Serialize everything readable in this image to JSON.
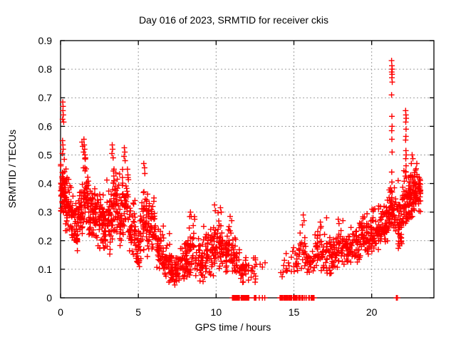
{
  "chart_data": {
    "type": "scatter",
    "title": "Day 016 of 2023, SRMTID for receiver ckis",
    "xlabel": "GPS time / hours",
    "ylabel": "SRMTID / TECUs",
    "xlim": [
      0,
      24
    ],
    "ylim": [
      0,
      0.9
    ],
    "x_ticks": [
      0,
      5,
      10,
      15,
      20
    ],
    "x_tick_labels": [
      "0",
      "5",
      "10",
      "15",
      "20"
    ],
    "y_ticks": [
      0,
      0.1,
      0.2,
      0.3,
      0.4,
      0.5,
      0.6,
      0.7,
      0.8,
      0.9
    ],
    "y_tick_labels": [
      "0",
      "0.1",
      "0.2",
      "0.3",
      "0.4",
      "0.5",
      "0.6",
      "0.7",
      "0.8",
      "0.9"
    ],
    "grid": true,
    "legend": "none",
    "marker": "plus",
    "marker_color": "#ff0000",
    "grid_color": "#9e9e9e",
    "border_color": "#000000",
    "max_point": {
      "x": 21.3,
      "y": 0.83
    },
    "data_gap_hours": [
      13.2,
      14.1
    ],
    "bins_format": [
      "x_start",
      "x_end",
      "y_min",
      "y_max",
      "count"
    ],
    "density_bins": [
      [
        0.0,
        0.3,
        0.27,
        0.5,
        60
      ],
      [
        0.3,
        0.7,
        0.22,
        0.46,
        50
      ],
      [
        0.7,
        1.1,
        0.16,
        0.42,
        48
      ],
      [
        1.1,
        1.45,
        0.22,
        0.44,
        40
      ],
      [
        1.45,
        1.8,
        0.24,
        0.52,
        45
      ],
      [
        1.8,
        2.15,
        0.2,
        0.4,
        42
      ],
      [
        2.15,
        2.55,
        0.16,
        0.44,
        45
      ],
      [
        2.55,
        2.95,
        0.15,
        0.4,
        42
      ],
      [
        2.95,
        3.3,
        0.14,
        0.42,
        40
      ],
      [
        3.3,
        3.6,
        0.2,
        0.5,
        38
      ],
      [
        3.6,
        3.95,
        0.18,
        0.45,
        36
      ],
      [
        3.95,
        4.4,
        0.2,
        0.5,
        42
      ],
      [
        4.4,
        4.8,
        0.15,
        0.36,
        36
      ],
      [
        4.8,
        5.2,
        0.1,
        0.3,
        36
      ],
      [
        5.2,
        5.65,
        0.14,
        0.44,
        42
      ],
      [
        5.65,
        6.15,
        0.16,
        0.36,
        46
      ],
      [
        6.15,
        6.65,
        0.08,
        0.27,
        44
      ],
      [
        6.65,
        7.15,
        0.05,
        0.2,
        44
      ],
      [
        7.15,
        7.65,
        0.035,
        0.16,
        44
      ],
      [
        7.65,
        8.15,
        0.05,
        0.2,
        44
      ],
      [
        8.15,
        8.75,
        0.06,
        0.29,
        46
      ],
      [
        8.75,
        9.35,
        0.05,
        0.23,
        44
      ],
      [
        9.35,
        9.85,
        0.07,
        0.28,
        42
      ],
      [
        9.85,
        10.35,
        0.09,
        0.31,
        44
      ],
      [
        10.35,
        10.85,
        0.09,
        0.27,
        42
      ],
      [
        10.85,
        11.35,
        0.07,
        0.25,
        40
      ],
      [
        11.35,
        11.95,
        0.05,
        0.18,
        30
      ],
      [
        11.95,
        12.55,
        0.05,
        0.17,
        18
      ],
      [
        12.55,
        13.2,
        0.08,
        0.15,
        4
      ],
      [
        14.1,
        14.8,
        0.06,
        0.14,
        10
      ],
      [
        14.8,
        15.3,
        0.08,
        0.18,
        16
      ],
      [
        15.3,
        15.8,
        0.09,
        0.25,
        22
      ],
      [
        15.8,
        16.3,
        0.07,
        0.2,
        24
      ],
      [
        16.3,
        16.9,
        0.09,
        0.26,
        38
      ],
      [
        16.9,
        17.5,
        0.08,
        0.23,
        40
      ],
      [
        17.5,
        18.1,
        0.1,
        0.27,
        42
      ],
      [
        18.1,
        18.7,
        0.11,
        0.26,
        44
      ],
      [
        18.7,
        19.3,
        0.12,
        0.29,
        46
      ],
      [
        19.3,
        19.9,
        0.14,
        0.32,
        48
      ],
      [
        19.9,
        20.5,
        0.16,
        0.33,
        55
      ],
      [
        20.5,
        21.05,
        0.19,
        0.36,
        55
      ],
      [
        21.05,
        21.5,
        0.22,
        0.42,
        45
      ],
      [
        21.5,
        21.95,
        0.17,
        0.36,
        48
      ],
      [
        21.95,
        22.4,
        0.24,
        0.46,
        55
      ],
      [
        22.4,
        22.8,
        0.27,
        0.48,
        55
      ],
      [
        22.8,
        23.15,
        0.3,
        0.47,
        42
      ]
    ],
    "extreme_points": [
      [
        0.14,
        0.685
      ],
      [
        0.16,
        0.67
      ],
      [
        0.15,
        0.655
      ],
      [
        0.18,
        0.64
      ],
      [
        0.13,
        0.625
      ],
      [
        0.2,
        0.615
      ],
      [
        0.13,
        0.55
      ],
      [
        0.15,
        0.535
      ],
      [
        0.17,
        0.52
      ],
      [
        0.12,
        0.505
      ],
      [
        1.38,
        0.545
      ],
      [
        1.42,
        0.53
      ],
      [
        1.5,
        0.555
      ],
      [
        1.52,
        0.535
      ],
      [
        1.55,
        0.52
      ],
      [
        1.48,
        0.51
      ],
      [
        1.56,
        0.5
      ],
      [
        1.6,
        0.49
      ],
      [
        3.32,
        0.535
      ],
      [
        3.35,
        0.52
      ],
      [
        3.3,
        0.505
      ],
      [
        3.38,
        0.49
      ],
      [
        4.1,
        0.525
      ],
      [
        4.13,
        0.51
      ],
      [
        4.08,
        0.495
      ],
      [
        4.15,
        0.48
      ],
      [
        4.3,
        0.45
      ],
      [
        4.33,
        0.43
      ],
      [
        5.35,
        0.47
      ],
      [
        5.4,
        0.455
      ],
      [
        5.42,
        0.435
      ],
      [
        7.0,
        0.225
      ],
      [
        8.35,
        0.3
      ],
      [
        8.4,
        0.285
      ],
      [
        8.62,
        0.275
      ],
      [
        9.2,
        0.25
      ],
      [
        9.9,
        0.325
      ],
      [
        9.95,
        0.305
      ],
      [
        10.28,
        0.315
      ],
      [
        10.33,
        0.3
      ],
      [
        10.9,
        0.285
      ],
      [
        11.0,
        0.27
      ],
      [
        14.5,
        0.155
      ],
      [
        15.6,
        0.29
      ],
      [
        15.65,
        0.27
      ],
      [
        15.55,
        0.255
      ],
      [
        16.7,
        0.265
      ],
      [
        16.75,
        0.25
      ],
      [
        17.1,
        0.28
      ],
      [
        17.85,
        0.275
      ],
      [
        17.9,
        0.26
      ],
      [
        18.15,
        0.27
      ],
      [
        21.28,
        0.83
      ],
      [
        21.3,
        0.812
      ],
      [
        21.32,
        0.8
      ],
      [
        21.29,
        0.79
      ],
      [
        21.31,
        0.782
      ],
      [
        21.3,
        0.77
      ],
      [
        21.32,
        0.755
      ],
      [
        21.28,
        0.71
      ],
      [
        21.3,
        0.635
      ],
      [
        21.31,
        0.6
      ],
      [
        21.29,
        0.585
      ],
      [
        21.3,
        0.555
      ],
      [
        21.31,
        0.51
      ],
      [
        21.29,
        0.44
      ],
      [
        21.3,
        0.405
      ],
      [
        21.32,
        0.37
      ],
      [
        21.28,
        0.345
      ],
      [
        21.3,
        0.31
      ],
      [
        22.18,
        0.655
      ],
      [
        22.2,
        0.64
      ],
      [
        22.22,
        0.628
      ],
      [
        22.19,
        0.615
      ],
      [
        22.21,
        0.59
      ],
      [
        22.2,
        0.565
      ],
      [
        22.18,
        0.552
      ],
      [
        22.2,
        0.515
      ],
      [
        22.22,
        0.5
      ],
      [
        22.19,
        0.487
      ],
      [
        22.21,
        0.462
      ],
      [
        22.2,
        0.44
      ],
      [
        22.55,
        0.47
      ],
      [
        22.6,
        0.5
      ],
      [
        22.65,
        0.487
      ],
      [
        22.9,
        0.47
      ],
      [
        21.7,
        0.41
      ]
    ],
    "zero_runs_format": [
      "x_start",
      "x_end",
      "count"
    ],
    "zero_value_runs": [
      [
        11.05,
        11.5,
        14
      ],
      [
        11.6,
        12.1,
        12
      ],
      [
        12.45,
        12.55,
        3
      ],
      [
        12.75,
        12.8,
        1
      ],
      [
        12.95,
        13.0,
        1
      ],
      [
        13.1,
        13.15,
        1
      ],
      [
        14.1,
        14.85,
        14
      ],
      [
        14.95,
        15.2,
        6
      ],
      [
        15.3,
        15.4,
        3
      ],
      [
        15.5,
        15.6,
        3
      ],
      [
        15.7,
        15.8,
        2
      ],
      [
        15.95,
        16.0,
        2
      ],
      [
        16.1,
        16.3,
        5
      ],
      [
        21.57,
        21.6,
        1
      ],
      [
        21.64,
        21.67,
        1
      ]
    ]
  }
}
